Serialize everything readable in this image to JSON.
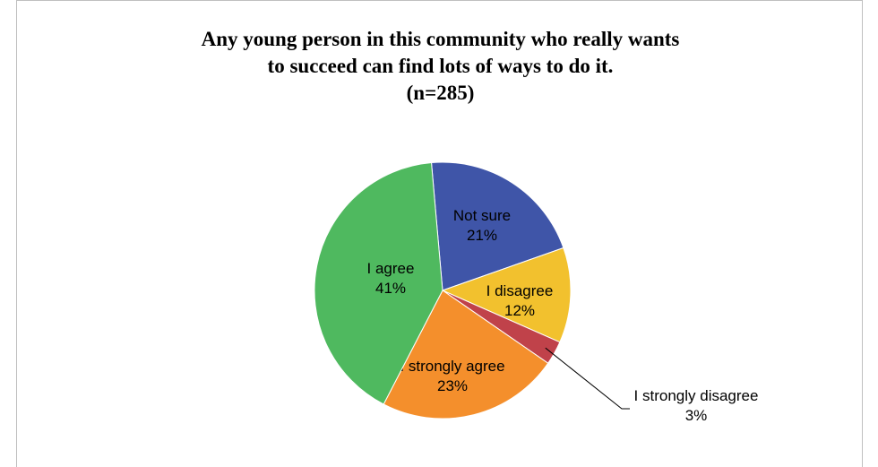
{
  "chart_data": {
    "type": "pie",
    "title": [
      "Any young person in this community who really wants",
      "to succeed can find lots of ways to do it.",
      "(n=285)"
    ],
    "slices": [
      {
        "label": "Not sure",
        "value": 21,
        "pct_label": "21%",
        "color": "#3f55a8"
      },
      {
        "label": "I disagree",
        "value": 12,
        "pct_label": "12%",
        "color": "#f2c12e"
      },
      {
        "label": "I strongly disagree",
        "value": 3,
        "pct_label": "3%",
        "color": "#c0424a"
      },
      {
        "label": "I strongly agree",
        "value": 23,
        "pct_label": "23%",
        "color": "#f48f2c"
      },
      {
        "label": "I agree",
        "value": 41,
        "pct_label": "41%",
        "color": "#4fb95f"
      }
    ],
    "start_angle_deg": -5,
    "direction": "clockwise"
  }
}
